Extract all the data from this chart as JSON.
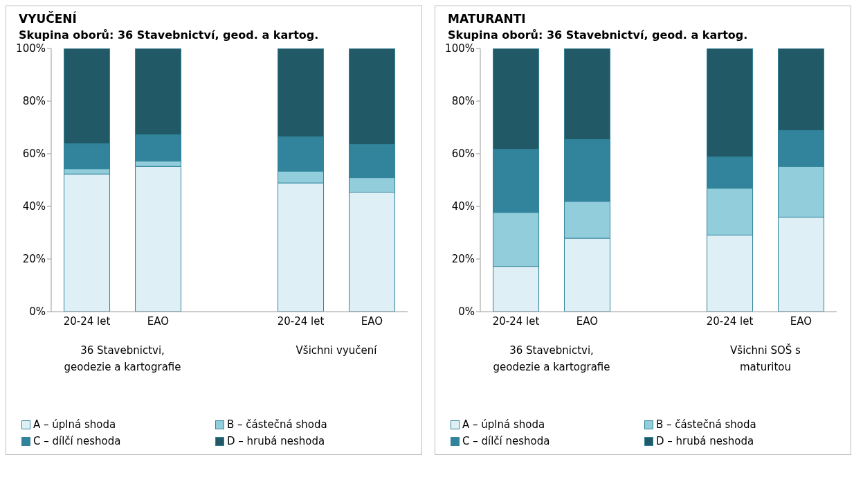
{
  "chart_data": [
    {
      "type": "bar",
      "stacked": true,
      "title": "VYUČENÍ",
      "subtitle": "Skupina oborů: 36 Stavebnictví, geod. a kartog.",
      "categories": [
        "20-24 let",
        "EAO",
        null,
        "20-24 let",
        "EAO"
      ],
      "series": [
        {
          "name": "A – úplná shoda",
          "color": "#deeff5",
          "values": [
            52.3,
            55.2,
            null,
            48.9,
            45.4
          ]
        },
        {
          "name": "B – částečná shoda",
          "color": "#92cddc",
          "values": [
            2,
            2,
            null,
            4.5,
            5.5
          ]
        },
        {
          "name": "C – dílčí neshoda",
          "color": "#31849b",
          "values": [
            9.5,
            10,
            null,
            13,
            12.6
          ]
        },
        {
          "name": "D – hrubá neshoda",
          "color": "#215967",
          "values": [
            36.2,
            32.8,
            null,
            33.6,
            36.5
          ]
        }
      ],
      "ylim": [
        0,
        100
      ],
      "yticks": [
        {
          "value": 0,
          "label": "0%"
        },
        {
          "value": 20,
          "label": "20%"
        },
        {
          "value": 40,
          "label": "40%"
        },
        {
          "value": 60,
          "label": "60%"
        },
        {
          "value": 80,
          "label": "80%"
        },
        {
          "value": 100,
          "label": "100%"
        }
      ],
      "grid": false,
      "legend": "bottom",
      "annotations": [
        "36 Stavebnictvi, geodezie a kartografie",
        "Všichni vyučení"
      ]
    },
    {
      "type": "bar",
      "stacked": true,
      "title": "MATURANTI",
      "subtitle": "Skupina oborů: 36 Stavebnictví, geod. a kartog.",
      "categories": [
        "20-24 let",
        "EAO",
        null,
        "20-24 let",
        "EAO"
      ],
      "series": [
        {
          "name": "A – úplná shoda",
          "color": "#deeff5",
          "values": [
            17.2,
            27.9,
            null,
            29.1,
            35.9
          ]
        },
        {
          "name": "B – částečná shoda",
          "color": "#92cddc",
          "values": [
            20.5,
            14,
            null,
            17.8,
            19.3
          ]
        },
        {
          "name": "C – dílčí neshoda",
          "color": "#31849b",
          "values": [
            24,
            23.5,
            null,
            11.9,
            13.6
          ]
        },
        {
          "name": "D – hrubá neshoda",
          "color": "#215967",
          "values": [
            38.3,
            34.6,
            null,
            41.2,
            31.2
          ]
        }
      ],
      "ylim": [
        0,
        100
      ],
      "yticks": [
        {
          "value": 0,
          "label": "0%"
        },
        {
          "value": 20,
          "label": "20%"
        },
        {
          "value": 40,
          "label": "40%"
        },
        {
          "value": 60,
          "label": "60%"
        },
        {
          "value": 80,
          "label": "80%"
        },
        {
          "value": 100,
          "label": "100%"
        }
      ],
      "grid": false,
      "legend": "bottom",
      "annotations": [
        "36 Stavebnictvi, geodezie a kartografie",
        "Všichni SOŠ s maturitou"
      ]
    }
  ]
}
